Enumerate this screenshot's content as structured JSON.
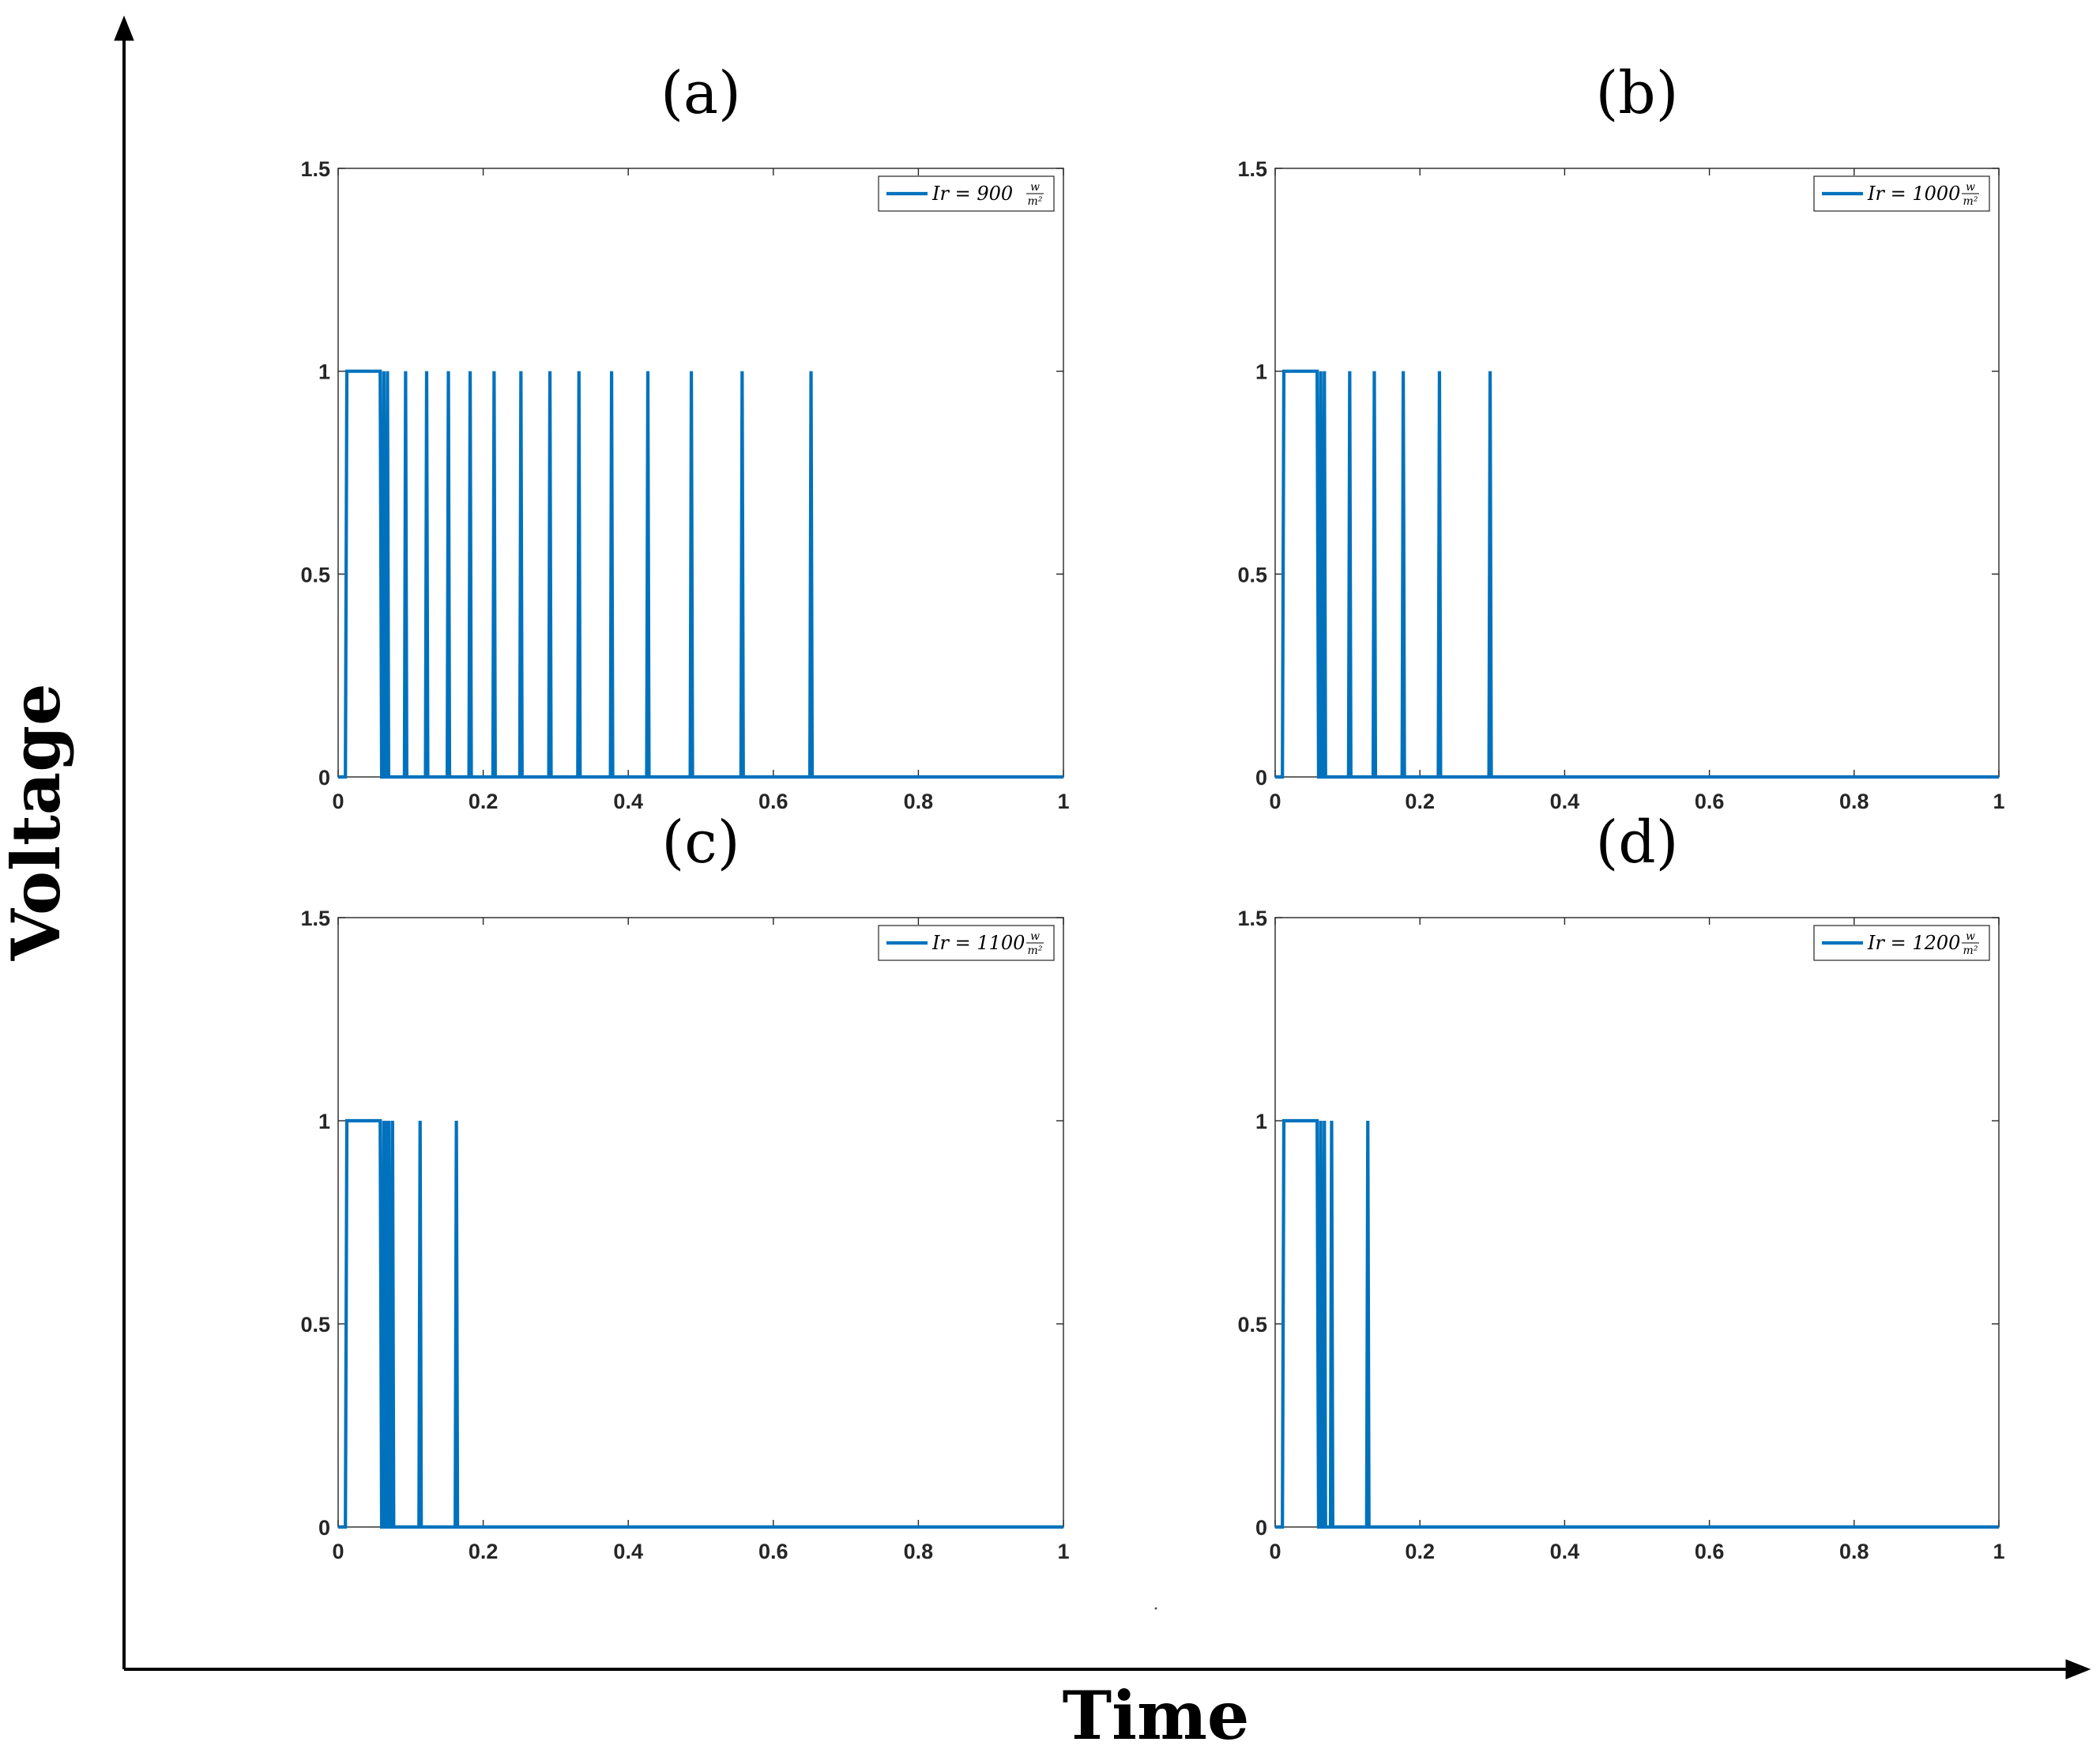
{
  "figure": {
    "x_axis_title": "Time",
    "y_axis_title": "Voltage",
    "series_color": "#0072BD"
  },
  "chart_data": [
    {
      "type": "line",
      "title": "(a)",
      "legend_label": "Ir = 900",
      "legend_unit_num": "w",
      "legend_unit_den": "m²",
      "xlim": [
        0,
        1
      ],
      "ylim": [
        0,
        1.5
      ],
      "xticks": [
        "0",
        "0.2",
        "0.4",
        "0.6",
        "0.8",
        "1"
      ],
      "yticks": [
        "0",
        "0.5",
        "1",
        "1.5"
      ],
      "plateau": [
        0.01,
        0.058
      ],
      "pulses": [
        0.063,
        0.068,
        0.093,
        0.122,
        0.152,
        0.182,
        0.215,
        0.252,
        0.292,
        0.332,
        0.377,
        0.427,
        0.487,
        0.557,
        0.652
      ]
    },
    {
      "type": "line",
      "title": "(b)",
      "legend_label": "Ir = 1000",
      "legend_unit_num": "w",
      "legend_unit_den": "m²",
      "xlim": [
        0,
        1
      ],
      "ylim": [
        0,
        1.5
      ],
      "xticks": [
        "0",
        "0.2",
        "0.4",
        "0.6",
        "0.8",
        "1"
      ],
      "yticks": [
        "0",
        "0.5",
        "1",
        "1.5"
      ],
      "plateau": [
        0.01,
        0.058
      ],
      "pulses": [
        0.063,
        0.068,
        0.103,
        0.137,
        0.177,
        0.227,
        0.297
      ]
    },
    {
      "type": "line",
      "title": "(c)",
      "legend_label": "Ir = 1100",
      "legend_unit_num": "w",
      "legend_unit_den": "m²",
      "xlim": [
        0,
        1
      ],
      "ylim": [
        0,
        1.5
      ],
      "xticks": [
        "0",
        "0.2",
        "0.4",
        "0.6",
        "0.8",
        "1"
      ],
      "yticks": [
        "0",
        "0.5",
        "1",
        "1.5"
      ],
      "plateau": [
        0.01,
        0.058
      ],
      "pulses": [
        0.063,
        0.066,
        0.07,
        0.075,
        0.113,
        0.163
      ]
    },
    {
      "type": "line",
      "title": "(d)",
      "legend_label": "Ir = 1200",
      "legend_unit_num": "w",
      "legend_unit_den": "m²",
      "xlim": [
        0,
        1
      ],
      "ylim": [
        0,
        1.5
      ],
      "xticks": [
        "0",
        "0.2",
        "0.4",
        "0.6",
        "0.8",
        "1"
      ],
      "yticks": [
        "0",
        "0.5",
        "1",
        "1.5"
      ],
      "plateau": [
        0.01,
        0.058
      ],
      "pulses": [
        0.063,
        0.068,
        0.078,
        0.128
      ]
    }
  ]
}
